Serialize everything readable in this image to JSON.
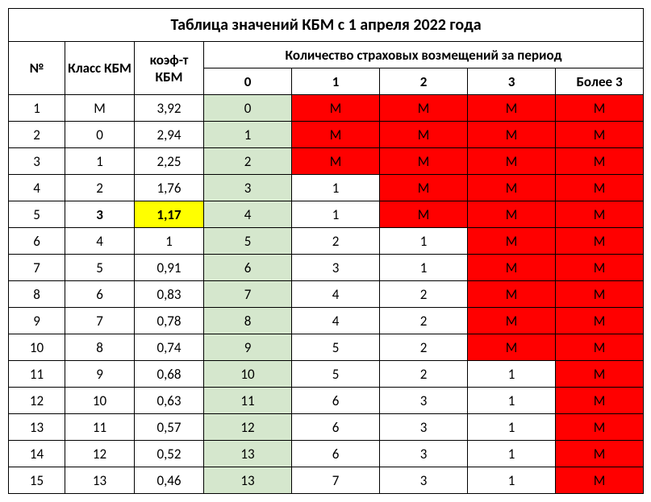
{
  "title": "Таблица значений КБМ с 1 апреля 2022 года",
  "headers": {
    "num": "№",
    "class": "Класс КБМ",
    "coef": "коэф-т КБМ",
    "claims_group": "Количество страховых возмещений за период",
    "c0": "0",
    "c1": "1",
    "c2": "2",
    "c3": "3",
    "c4": "Более 3"
  },
  "colors": {
    "green": "#d5e7cd",
    "red": "#ff0000",
    "yellow": "#ffff00",
    "white": "#ffffff",
    "border": "#000000"
  },
  "highlight_row_index": 4,
  "rows": [
    {
      "n": "1",
      "cls": "М",
      "coef": "3,92",
      "c0": "0",
      "c1": "М",
      "c2": "М",
      "c3": "М",
      "c4": "М",
      "c1bg": "red",
      "c2bg": "red",
      "c3bg": "red",
      "c4bg": "red"
    },
    {
      "n": "2",
      "cls": "0",
      "coef": "2,94",
      "c0": "1",
      "c1": "М",
      "c2": "М",
      "c3": "М",
      "c4": "М",
      "c1bg": "red",
      "c2bg": "red",
      "c3bg": "red",
      "c4bg": "red"
    },
    {
      "n": "3",
      "cls": "1",
      "coef": "2,25",
      "c0": "2",
      "c1": "М",
      "c2": "М",
      "c3": "М",
      "c4": "М",
      "c1bg": "red",
      "c2bg": "red",
      "c3bg": "red",
      "c4bg": "red"
    },
    {
      "n": "4",
      "cls": "2",
      "coef": "1,76",
      "c0": "3",
      "c1": "1",
      "c2": "М",
      "c3": "М",
      "c4": "М",
      "c1bg": "white",
      "c2bg": "red",
      "c3bg": "red",
      "c4bg": "red"
    },
    {
      "n": "5",
      "cls": "3",
      "coef": "1,17",
      "c0": "4",
      "c1": "1",
      "c2": "М",
      "c3": "М",
      "c4": "М",
      "c1bg": "white",
      "c2bg": "red",
      "c3bg": "red",
      "c4bg": "red"
    },
    {
      "n": "6",
      "cls": "4",
      "coef": "1",
      "c0": "5",
      "c1": "2",
      "c2": "1",
      "c3": "М",
      "c4": "М",
      "c1bg": "white",
      "c2bg": "white",
      "c3bg": "red",
      "c4bg": "red"
    },
    {
      "n": "7",
      "cls": "5",
      "coef": "0,91",
      "c0": "6",
      "c1": "3",
      "c2": "1",
      "c3": "М",
      "c4": "М",
      "c1bg": "white",
      "c2bg": "white",
      "c3bg": "red",
      "c4bg": "red"
    },
    {
      "n": "8",
      "cls": "6",
      "coef": "0,83",
      "c0": "7",
      "c1": "4",
      "c2": "2",
      "c3": "М",
      "c4": "М",
      "c1bg": "white",
      "c2bg": "white",
      "c3bg": "red",
      "c4bg": "red"
    },
    {
      "n": "9",
      "cls": "7",
      "coef": "0,78",
      "c0": "8",
      "c1": "4",
      "c2": "2",
      "c3": "М",
      "c4": "М",
      "c1bg": "white",
      "c2bg": "white",
      "c3bg": "red",
      "c4bg": "red"
    },
    {
      "n": "10",
      "cls": "8",
      "coef": "0,74",
      "c0": "9",
      "c1": "5",
      "c2": "2",
      "c3": "М",
      "c4": "М",
      "c1bg": "white",
      "c2bg": "white",
      "c3bg": "red",
      "c4bg": "red"
    },
    {
      "n": "11",
      "cls": "9",
      "coef": "0,68",
      "c0": "10",
      "c1": "5",
      "c2": "2",
      "c3": "1",
      "c4": "М",
      "c1bg": "white",
      "c2bg": "white",
      "c3bg": "white",
      "c4bg": "red"
    },
    {
      "n": "12",
      "cls": "10",
      "coef": "0,63",
      "c0": "11",
      "c1": "6",
      "c2": "3",
      "c3": "1",
      "c4": "М",
      "c1bg": "white",
      "c2bg": "white",
      "c3bg": "white",
      "c4bg": "red"
    },
    {
      "n": "13",
      "cls": "11",
      "coef": "0,57",
      "c0": "12",
      "c1": "6",
      "c2": "3",
      "c3": "1",
      "c4": "М",
      "c1bg": "white",
      "c2bg": "white",
      "c3bg": "white",
      "c4bg": "red"
    },
    {
      "n": "14",
      "cls": "12",
      "coef": "0,52",
      "c0": "13",
      "c1": "6",
      "c2": "3",
      "c3": "1",
      "c4": "М",
      "c1bg": "white",
      "c2bg": "white",
      "c3bg": "white",
      "c4bg": "red"
    },
    {
      "n": "15",
      "cls": "13",
      "coef": "0,46",
      "c0": "13",
      "c1": "7",
      "c2": "3",
      "c3": "1",
      "c4": "М",
      "c1bg": "white",
      "c2bg": "white",
      "c3bg": "white",
      "c4bg": "red"
    }
  ]
}
